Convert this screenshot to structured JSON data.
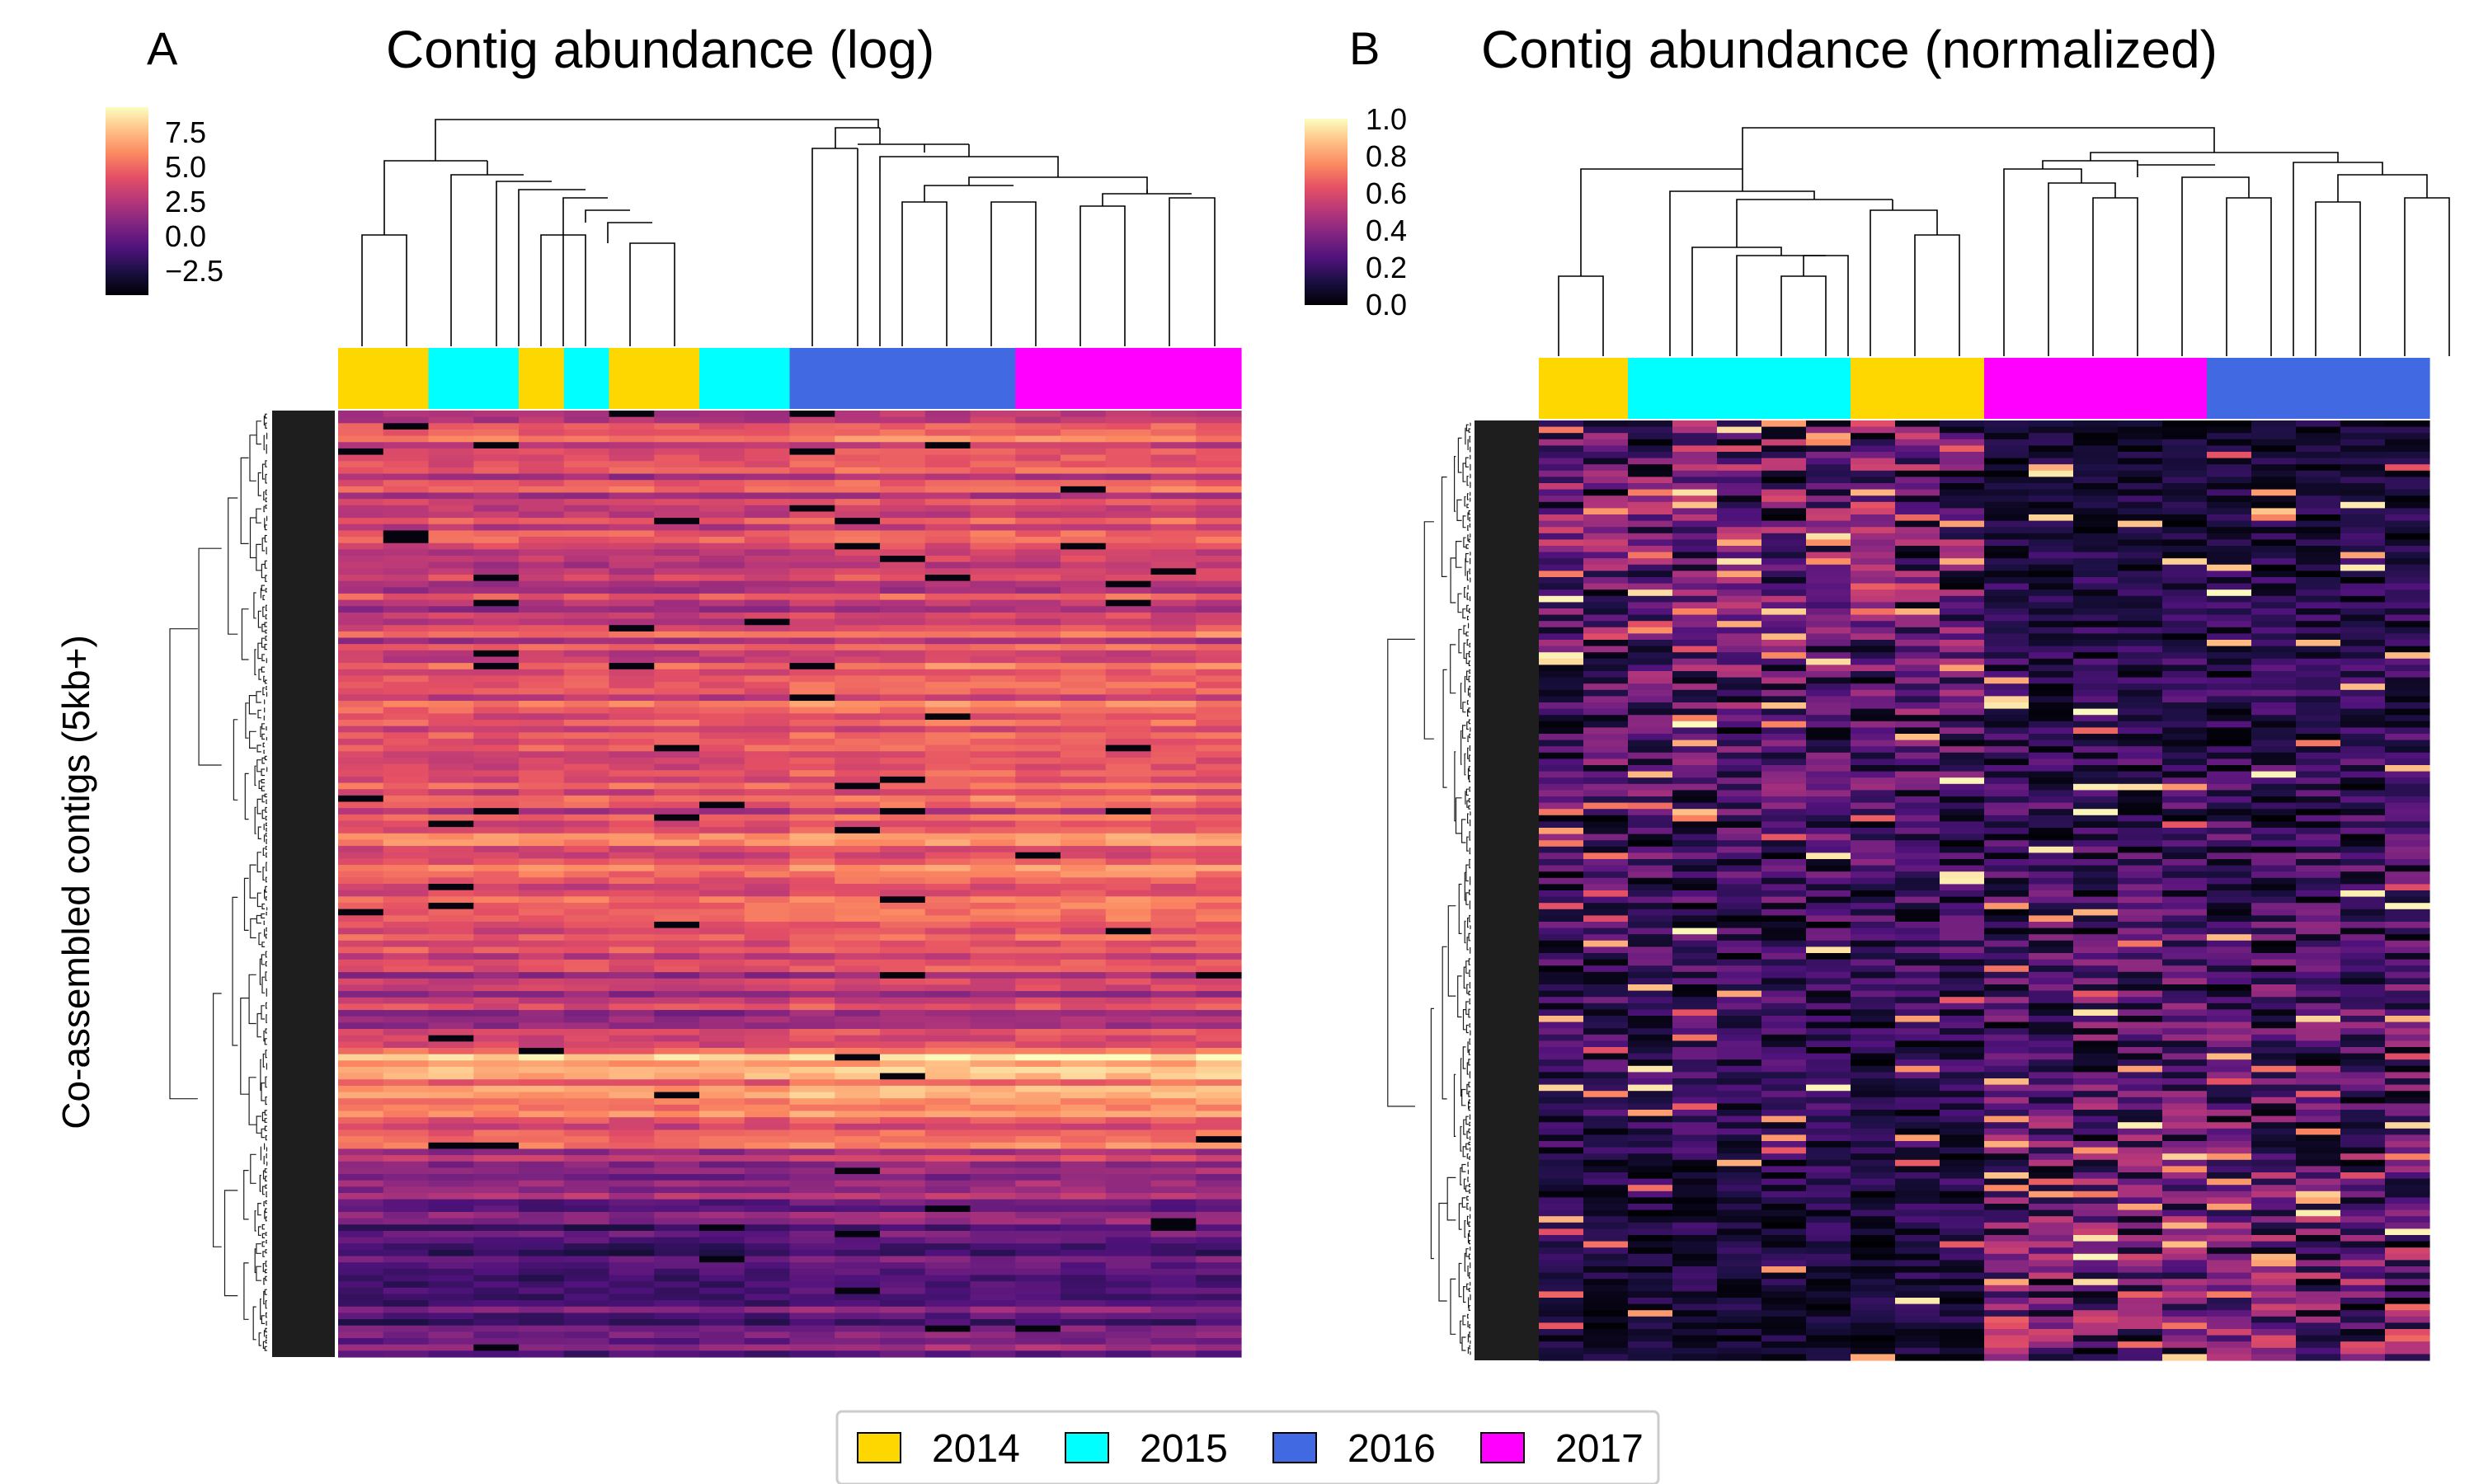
{
  "chart_data": [
    {
      "type": "heatmap",
      "panel_label": "A",
      "title": "Contig abundance (log)",
      "ylabel": "Co-assembled contigs (5kb+)",
      "colormap": "magma",
      "colorbar": {
        "ticks": [
          "7.5",
          "5.0",
          "2.5",
          "0.0",
          "−2.5"
        ],
        "tick_values": [
          7.5,
          5.0,
          2.5,
          0.0,
          -2.5
        ],
        "range": [
          -4,
          8.5
        ]
      },
      "columns": 20,
      "year_bar": [
        "2014",
        "2014",
        "2015",
        "2015",
        "2014",
        "2015",
        "2014",
        "2014",
        "2015",
        "2015",
        "2016",
        "2016",
        "2016",
        "2016",
        "2016",
        "2017",
        "2017",
        "2017",
        "2017",
        "2017"
      ],
      "row_profile": [
        [
          0.0,
          0.62
        ],
        [
          0.05,
          0.58
        ],
        [
          0.12,
          0.52
        ],
        [
          0.2,
          0.55
        ],
        [
          0.3,
          0.6
        ],
        [
          0.42,
          0.58
        ],
        [
          0.45,
          0.68
        ],
        [
          0.55,
          0.55
        ],
        [
          0.65,
          0.48
        ],
        [
          0.68,
          0.82
        ],
        [
          0.72,
          0.72
        ],
        [
          0.78,
          0.55
        ],
        [
          0.84,
          0.3
        ],
        [
          0.9,
          0.18
        ],
        [
          1.0,
          0.35
        ]
      ]
    },
    {
      "type": "heatmap",
      "panel_label": "B",
      "title": "Contig abundance (normalized)",
      "colormap": "magma",
      "colorbar": {
        "ticks": [
          "1.0",
          "0.8",
          "0.6",
          "0.4",
          "0.2",
          "0.0"
        ],
        "tick_values": [
          1.0,
          0.8,
          0.6,
          0.4,
          0.2,
          0.0
        ],
        "range": [
          0,
          1
        ]
      },
      "columns": 20,
      "year_bar": [
        "2014",
        "2014",
        "2015",
        "2015",
        "2015",
        "2015",
        "2015",
        "2014",
        "2014",
        "2014",
        "2017",
        "2017",
        "2017",
        "2017",
        "2017",
        "2016",
        "2016",
        "2016",
        "2016",
        "2016"
      ]
    }
  ],
  "legend": {
    "items": [
      {
        "label": "2014",
        "color": "#FFD700"
      },
      {
        "label": "2015",
        "color": "#00FFFF"
      },
      {
        "label": "2016",
        "color": "#4169E1"
      },
      {
        "label": "2017",
        "color": "#FF00FF"
      }
    ]
  }
}
